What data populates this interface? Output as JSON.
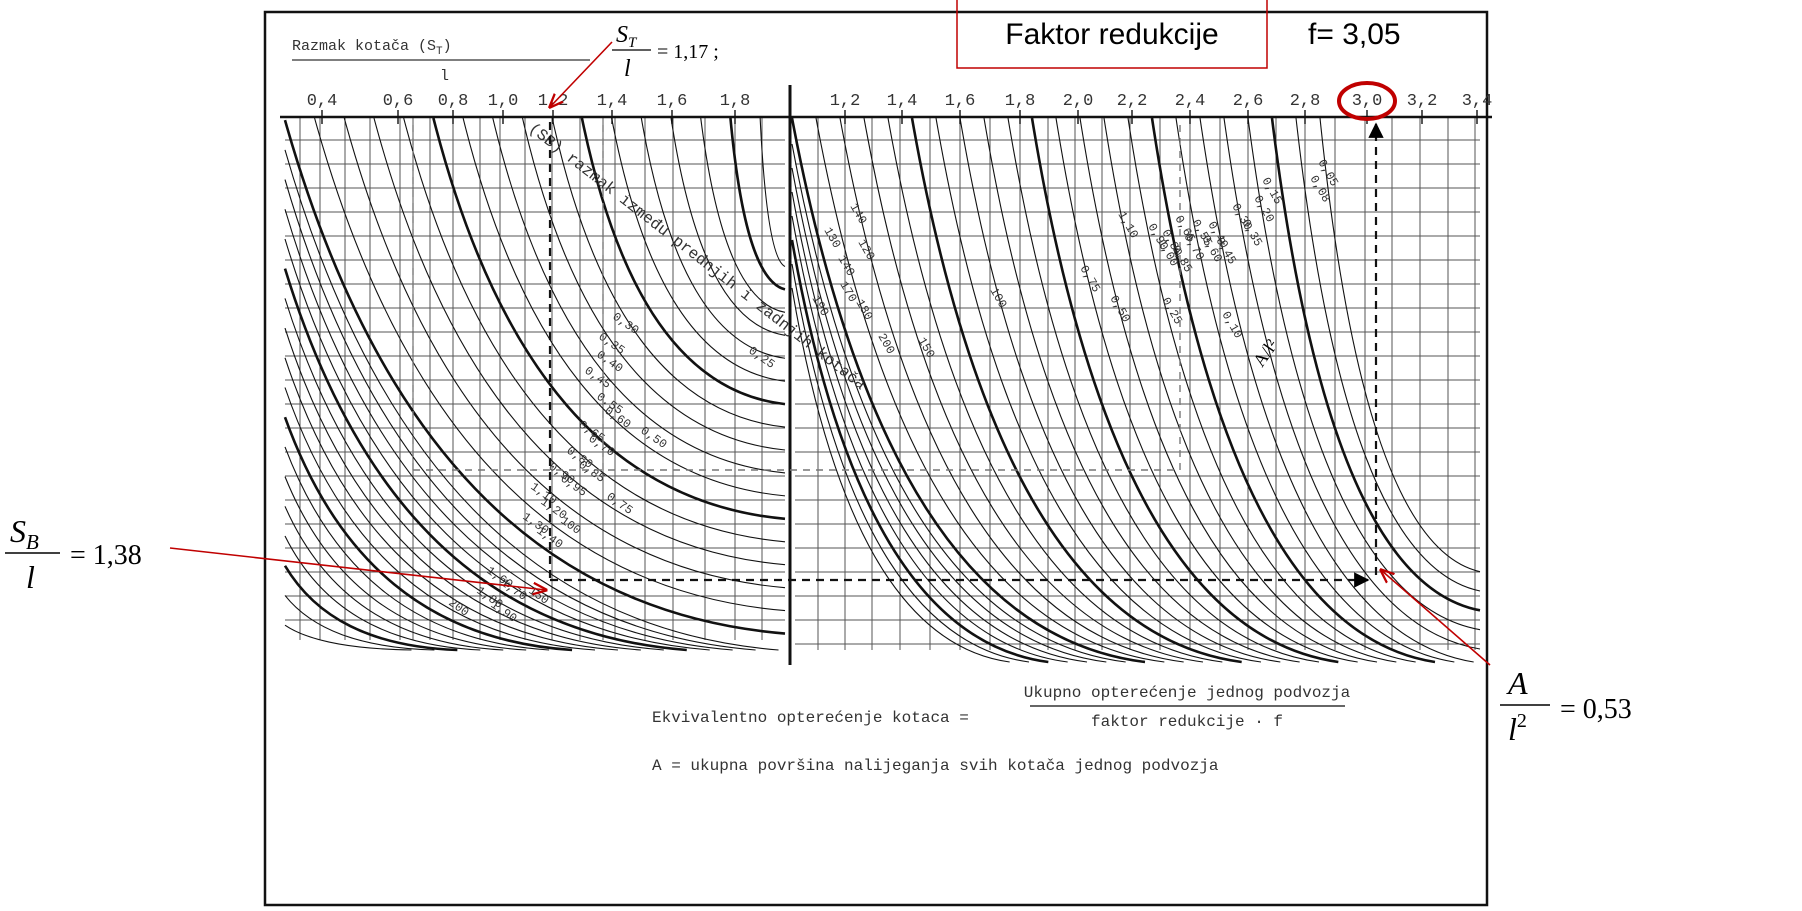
{
  "axis_title": {
    "prefix": "Razmak kotača (S",
    "subscript": "T",
    "suffix": ")",
    "denominator": "l"
  },
  "top_axis": {
    "left_ticks": [
      "0,4",
      "0,6",
      "0,8",
      "1,0",
      "1,2",
      "1,4",
      "1,6",
      "1,8"
    ],
    "right_ticks": [
      "1,2",
      "1,4",
      "1,6",
      "1,8",
      "2,0",
      "2,2",
      "2,4",
      "2,6",
      "2,8",
      "3,0",
      "3,2",
      "3,4"
    ]
  },
  "curve_titles": {
    "sb": "(SB) razmak između prednjih i zadnjih kotača",
    "area": "A/l²"
  },
  "curve_labels": {
    "left": [
      "0,25",
      "0,30",
      "0,35",
      "0,40",
      "0,45",
      "0,55",
      "0,60",
      "0,65",
      "0,70",
      "0,80",
      "0,85",
      "0,90",
      "0,95",
      "1,10",
      "1,20",
      "1,30",
      "1,40",
      "0,50",
      "0,75",
      "100",
      "1,60",
      "1,70",
      "1,80",
      "1,90",
      "150",
      "200"
    ],
    "right": [
      "0,05",
      "0,08",
      "0,15",
      "0,20",
      "0,30",
      "0,35",
      "0,40",
      "0,45",
      "0,55",
      "0,60",
      "0,65",
      "0,70",
      "0,80",
      "0,85",
      "0,90",
      "1,00",
      "1,10",
      "140",
      "130",
      "140",
      "120",
      "190",
      "170",
      "180",
      "200",
      "150",
      "100",
      "0,75",
      "0,50",
      "0,25",
      "0,10"
    ]
  },
  "annotations": {
    "st": {
      "symbol": "S",
      "subscript": "T",
      "denominator": "l",
      "value": "= 1,17 ;"
    },
    "sb": {
      "symbol": "S",
      "subscript": "B",
      "denominator": "l",
      "value": "= 1,38"
    },
    "area": {
      "numerator": "A",
      "denominator": "l",
      "exponent": "2",
      "value": "= 0,53"
    },
    "factor_box": "Faktor redukcije",
    "f_value": "f= 3,05"
  },
  "footer": {
    "lhs": "Ekvivalentno opterećenje kotaca =",
    "numerator": "Ukupno opterećenje jednog podvozja",
    "denominator": "faktor redukcije · f",
    "definition": "A = ukupna površina nalijeganja svih kotača jednog podvozja"
  }
}
